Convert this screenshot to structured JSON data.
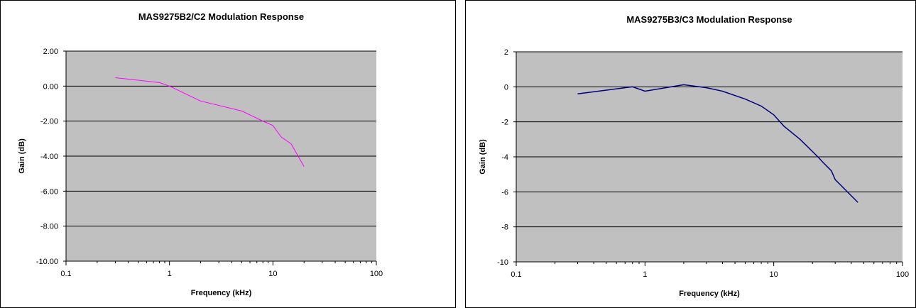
{
  "chart_data": [
    {
      "type": "line",
      "title": "MAS9275B2/C2 Modulation Response",
      "xlabel": "Frequency (kHz)",
      "ylabel": "Gain (dB)",
      "xscale": "log",
      "xlim": [
        0.1,
        100
      ],
      "ylim": [
        -10,
        2
      ],
      "xticks": [
        "0.1",
        "1",
        "10",
        "100"
      ],
      "yticks": [
        "2.00",
        "0.00",
        "-2.00",
        "-4.00",
        "-6.00",
        "-8.00",
        "-10.00"
      ],
      "grid": "horizontal",
      "plot_background": "#c0c0c0",
      "series": [
        {
          "color": "#ff00ff",
          "x": [
            0.3,
            0.8,
            1,
            2,
            5,
            8,
            10,
            12,
            15,
            20
          ],
          "y": [
            0.48,
            0.2,
            0.0,
            -0.85,
            -1.42,
            -2.0,
            -2.25,
            -2.9,
            -3.3,
            -4.6
          ]
        }
      ]
    },
    {
      "type": "line",
      "title": "MAS9275B3/C3 Modulation Response",
      "xlabel": "Frequency (kHz)",
      "ylabel": "Gain (dB)",
      "xscale": "log",
      "xlim": [
        0.1,
        100
      ],
      "ylim": [
        -10,
        2
      ],
      "xticks": [
        "0.1",
        "1",
        "10",
        "100"
      ],
      "yticks": [
        "2",
        "0",
        "-2",
        "-4",
        "-6",
        "-8",
        "-10"
      ],
      "grid": "horizontal",
      "plot_background": "#c0c0c0",
      "series": [
        {
          "color": "#000080",
          "x": [
            0.3,
            0.8,
            1,
            2,
            3,
            4,
            6,
            8,
            10,
            12,
            16,
            20,
            22,
            24,
            28,
            30,
            45
          ],
          "y": [
            -0.4,
            0.0,
            -0.25,
            0.12,
            -0.05,
            -0.25,
            -0.7,
            -1.1,
            -1.6,
            -2.25,
            -3.0,
            -3.7,
            -4.0,
            -4.3,
            -4.8,
            -5.3,
            -6.6
          ]
        }
      ]
    }
  ]
}
